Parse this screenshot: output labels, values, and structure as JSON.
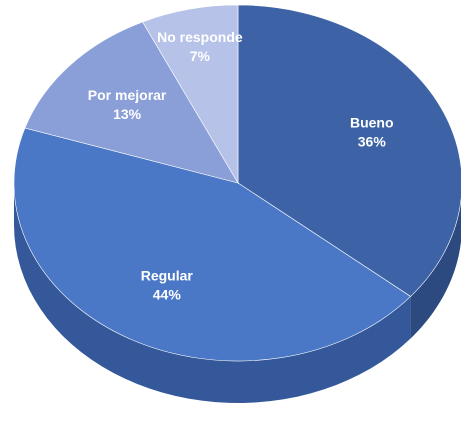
{
  "chart_data": {
    "type": "pie",
    "categories": [
      "Bueno",
      "Regular",
      "Por mejorar",
      "No responde"
    ],
    "values": [
      36,
      44,
      13,
      7
    ],
    "value_labels": [
      "36%",
      "44%",
      "13%",
      "7%"
    ],
    "colors": [
      "#3d63a6",
      "#4a78c6",
      "#8a9fd8",
      "#b6c2e8"
    ],
    "side_colors": [
      "#2c4a80",
      "#34589a",
      "#6b80b8",
      "#95a3cc"
    ]
  }
}
